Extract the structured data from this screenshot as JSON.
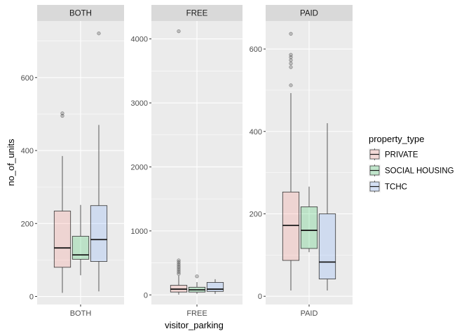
{
  "chart_data": {
    "type": "boxplot",
    "facet_variable": "visitor_parking",
    "xlabel": "visitor_parking",
    "ylabel": "no_of_units",
    "grid": true,
    "legend_position": "right",
    "legend": {
      "title": "property_type",
      "items": [
        {
          "name": "PRIVATE",
          "color": "#F8766D"
        },
        {
          "name": "SOCIAL HOUSING",
          "color": "#00BA38"
        },
        {
          "name": "TCHC",
          "color": "#619CFF"
        }
      ]
    },
    "fill_alpha": 0.2,
    "panels": [
      {
        "strip": "BOTH",
        "x_tick": "BOTH",
        "ylim": [
          -22,
          755
        ],
        "y_ticks": [
          0,
          200,
          400,
          600
        ],
        "boxes": [
          {
            "group": "PRIVATE",
            "whisker_low": 10,
            "q1": 80,
            "median": 133,
            "q3": 234,
            "whisker_high": 385,
            "outliers": [
              495,
              502
            ]
          },
          {
            "group": "SOCIAL HOUSING",
            "whisker_low": 58,
            "q1": 102,
            "median": 114,
            "q3": 165,
            "whisker_high": 251,
            "outliers": []
          },
          {
            "group": "TCHC",
            "whisker_low": 14,
            "q1": 96,
            "median": 156,
            "q3": 249,
            "whisker_high": 470,
            "outliers": [
              721
            ]
          }
        ]
      },
      {
        "strip": "FREE",
        "x_tick": "FREE",
        "ylim": [
          -150,
          4280
        ],
        "y_ticks": [
          0,
          1000,
          2000,
          3000,
          4000
        ],
        "boxes": [
          {
            "group": "PRIVATE",
            "whisker_low": 5,
            "q1": 45,
            "median": 90,
            "q3": 150,
            "whisker_high": 300,
            "outliers": [
              330,
              360,
              390,
              420,
              450,
              480,
              510,
              540,
              4120
            ]
          },
          {
            "group": "SOCIAL HOUSING",
            "whisker_low": 15,
            "q1": 45,
            "median": 80,
            "q3": 120,
            "whisker_high": 200,
            "outliers": [
              290
            ]
          },
          {
            "group": "TCHC",
            "whisker_low": 15,
            "q1": 55,
            "median": 90,
            "q3": 195,
            "whisker_high": 245,
            "outliers": []
          }
        ]
      },
      {
        "strip": "PAID",
        "x_tick": "PAID",
        "ylim": [
          -20,
          668
        ],
        "y_ticks": [
          0,
          200,
          400,
          600
        ],
        "boxes": [
          {
            "group": "PRIVATE",
            "whisker_low": 14,
            "q1": 87,
            "median": 172,
            "q3": 253,
            "whisker_high": 493,
            "outliers": [
              512,
              556,
              565,
              573,
              580,
              586,
              637
            ]
          },
          {
            "group": "SOCIAL HOUSING",
            "whisker_low": 107,
            "q1": 116,
            "median": 160,
            "q3": 217,
            "whisker_high": 266,
            "outliers": []
          },
          {
            "group": "TCHC",
            "whisker_low": 14,
            "q1": 42,
            "median": 83,
            "q3": 200,
            "whisker_high": 420,
            "outliers": []
          }
        ]
      }
    ]
  }
}
